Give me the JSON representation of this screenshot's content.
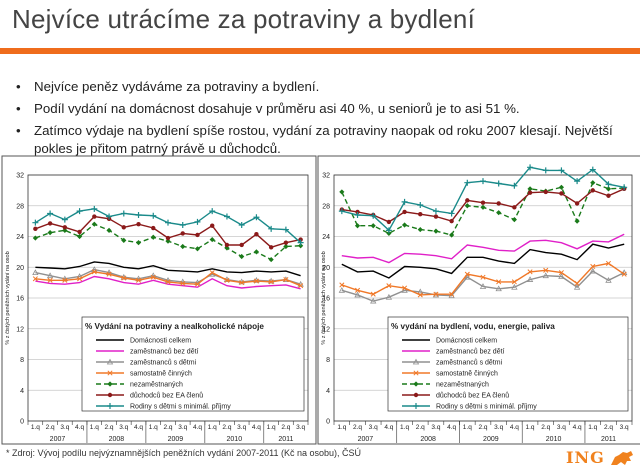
{
  "slide": {
    "title": "Nejvíce utrácíme za potraviny a bydlení",
    "bullets": [
      "Nejvíce peněz vydáváme za potraviny a bydlení.",
      "Podíl vydání na domácnost dosahuje v průměru asi 40 %, u seniorů je to asi 51 %.",
      "Zatímco výdaje na bydlení spíše rostou, vydání za potraviny naopak od roku 2007 klesají. Největší pokles je přitom patrný právě u důchodců."
    ],
    "footnote": "* Zdroj: Vývoj podílu nejvýznamnějších peněžních vydání 2007-2011 (Kč na osobu), ČSÚ",
    "logo_text": "ING",
    "logo_icon": "lion-icon",
    "accent": "#ef6c1c"
  },
  "chart_data": [
    {
      "type": "line",
      "title": "% Vydání na potraviny a nealkoholické nápoje",
      "ylabel": "% z čistých peněžních vydání na osob",
      "ylim": [
        0,
        32
      ],
      "yticks": [
        0,
        4,
        8,
        12,
        16,
        20,
        24,
        28,
        32
      ],
      "categories": [
        "1.q",
        "2.q",
        "3.q",
        "4.q",
        "1.q",
        "2.q",
        "3.q",
        "4.q",
        "1.q",
        "2.q",
        "3.q",
        "4.q",
        "1.q",
        "2.q",
        "3.q",
        "4.q",
        "1.q",
        "2.q",
        "3.q"
      ],
      "years": [
        "2007",
        "2008",
        "2009",
        "2010",
        "2011"
      ],
      "series": [
        {
          "name": "Domácnosti celkem",
          "color": "#000000",
          "dash": "",
          "marker": "none",
          "values": [
            20,
            19.9,
            19.8,
            20.1,
            20.7,
            20.5,
            20,
            19.8,
            20.2,
            19.6,
            19.5,
            19.4,
            19.8,
            19.4,
            19.3,
            19.5,
            19.4,
            19.5,
            18.9
          ]
        },
        {
          "name": "zaměstnanců bez dětí",
          "color": "#e020c8",
          "dash": "",
          "marker": "none",
          "values": [
            18.2,
            17.9,
            17.8,
            18,
            18.8,
            18.5,
            18,
            17.8,
            18.3,
            17.8,
            17.6,
            17.4,
            18.5,
            17.6,
            17.3,
            17.5,
            17.6,
            17.7,
            17.2
          ]
        },
        {
          "name": "zaměstnanců s dětmi",
          "color": "#909090",
          "dash": "",
          "marker": "triangle",
          "values": [
            19.3,
            18.9,
            18.5,
            18.8,
            19.7,
            19.3,
            18.7,
            18.5,
            18.9,
            18.3,
            18.1,
            18,
            19.1,
            18.4,
            18.1,
            18.3,
            18.2,
            18.4,
            17.8
          ]
        },
        {
          "name": "samostatně činných",
          "color": "#f07828",
          "dash": "",
          "marker": "x",
          "values": [
            18.5,
            18.3,
            18.3,
            18.5,
            19.4,
            19.1,
            18.6,
            18.3,
            18.7,
            18.1,
            17.9,
            17.8,
            19.3,
            18.3,
            18,
            18.2,
            18.1,
            18.4,
            17.6
          ]
        },
        {
          "name": "nezaměstnaných",
          "color": "#1a7a1a",
          "dash": "5,3",
          "marker": "diamond",
          "values": [
            23.8,
            24.5,
            24.8,
            24,
            25.6,
            24.8,
            23.5,
            23.2,
            23.9,
            23.4,
            22.7,
            22.4,
            23.6,
            22.5,
            21.4,
            22,
            21,
            22.7,
            22.8
          ]
        },
        {
          "name": "důchodců bez EA členů",
          "color": "#8b1a1a",
          "dash": "",
          "marker": "circle",
          "values": [
            25,
            25.7,
            25.2,
            24.6,
            26.6,
            26.3,
            25.2,
            25.6,
            25.1,
            23.8,
            24.4,
            24.2,
            25.4,
            22.9,
            22.9,
            24.3,
            22.6,
            23.2,
            23.6
          ]
        },
        {
          "name": "Rodiny s dětmi s minimál. příjmy",
          "color": "#1a8a8a",
          "dash": "",
          "marker": "plus",
          "values": [
            25.8,
            27,
            26.2,
            27.3,
            27.6,
            26.6,
            27,
            26.8,
            26.7,
            25.8,
            25.5,
            25.9,
            27.3,
            26.6,
            25.5,
            26.5,
            25,
            24.9,
            23.2
          ]
        }
      ]
    },
    {
      "type": "line",
      "title": "% vydání na bydlení, vodu, energie, paliva",
      "ylabel": "% z čistých peněžních vydání na osob",
      "ylim": [
        0,
        32
      ],
      "yticks": [
        0,
        4,
        8,
        12,
        16,
        20,
        24,
        28,
        32
      ],
      "categories": [
        "1.q",
        "2.q",
        "3.q",
        "4.q",
        "1.q",
        "2.q",
        "3.q",
        "4.q",
        "1.q",
        "2.q",
        "3.q",
        "4.q",
        "1.q",
        "2.q",
        "3.q",
        "4.q",
        "1.q",
        "2.q",
        "3.q"
      ],
      "years": [
        "2007",
        "2008",
        "2009",
        "2010",
        "2011"
      ],
      "series": [
        {
          "name": "Domácnosti celkem",
          "color": "#000000",
          "dash": "",
          "marker": "none",
          "values": [
            20.4,
            19.4,
            19.5,
            18.6,
            20.1,
            20,
            19.8,
            19.2,
            21.3,
            21.3,
            20.8,
            20.5,
            22.3,
            21.9,
            21.7,
            21,
            23,
            22.5,
            23
          ]
        },
        {
          "name": "zaměstnanců bez dětí",
          "color": "#e020c8",
          "dash": "",
          "marker": "none",
          "values": [
            21.5,
            21.2,
            21.3,
            20.6,
            21.8,
            21.7,
            21.5,
            21.1,
            22.9,
            22.6,
            22.2,
            22.1,
            23.4,
            23.5,
            23.2,
            22.4,
            23.4,
            23.3,
            24.3
          ]
        },
        {
          "name": "zaměstnanců s dětmi",
          "color": "#909090",
          "dash": "",
          "marker": "triangle",
          "values": [
            17,
            16.4,
            15.6,
            16.1,
            17,
            16.8,
            16.4,
            16.3,
            18.7,
            17.5,
            17.2,
            17.4,
            18.4,
            18.9,
            18.8,
            17.4,
            19.5,
            18.3,
            19.3
          ]
        },
        {
          "name": "samostatně činných",
          "color": "#f07828",
          "dash": "",
          "marker": "x",
          "values": [
            17.7,
            17,
            16.5,
            17.6,
            17.3,
            16.4,
            16.5,
            16.5,
            19.1,
            18.7,
            18.1,
            18.1,
            19.4,
            19.6,
            19.3,
            17.9,
            20.1,
            20.5,
            19.1
          ]
        },
        {
          "name": "nezaměstnaných",
          "color": "#1a7a1a",
          "dash": "5,3",
          "marker": "diamond",
          "values": [
            29.8,
            25.4,
            25.4,
            24.4,
            25.5,
            24.9,
            24.7,
            24.2,
            28,
            27.8,
            27.1,
            26.2,
            30.2,
            29.9,
            30.4,
            26,
            31,
            30.2,
            30.3
          ]
        },
        {
          "name": "důchodců bez EA členů",
          "color": "#8b1a1a",
          "dash": "",
          "marker": "circle",
          "values": [
            27.5,
            27.2,
            26.8,
            25.9,
            27.2,
            26.9,
            26.6,
            26,
            28.7,
            28.4,
            28.3,
            27.8,
            29.7,
            29.8,
            29.6,
            28.3,
            30,
            29.3,
            30.2
          ]
        },
        {
          "name": "Rodiny s dětmi s minimál. příjmy",
          "color": "#1a8a8a",
          "dash": "",
          "marker": "plus",
          "values": [
            27.3,
            26.8,
            26.7,
            24.8,
            28.5,
            28.1,
            27.3,
            27,
            31,
            31.2,
            30.9,
            30.6,
            33,
            32.6,
            32.6,
            31.2,
            32.7,
            30.8,
            30.4
          ]
        }
      ]
    }
  ]
}
